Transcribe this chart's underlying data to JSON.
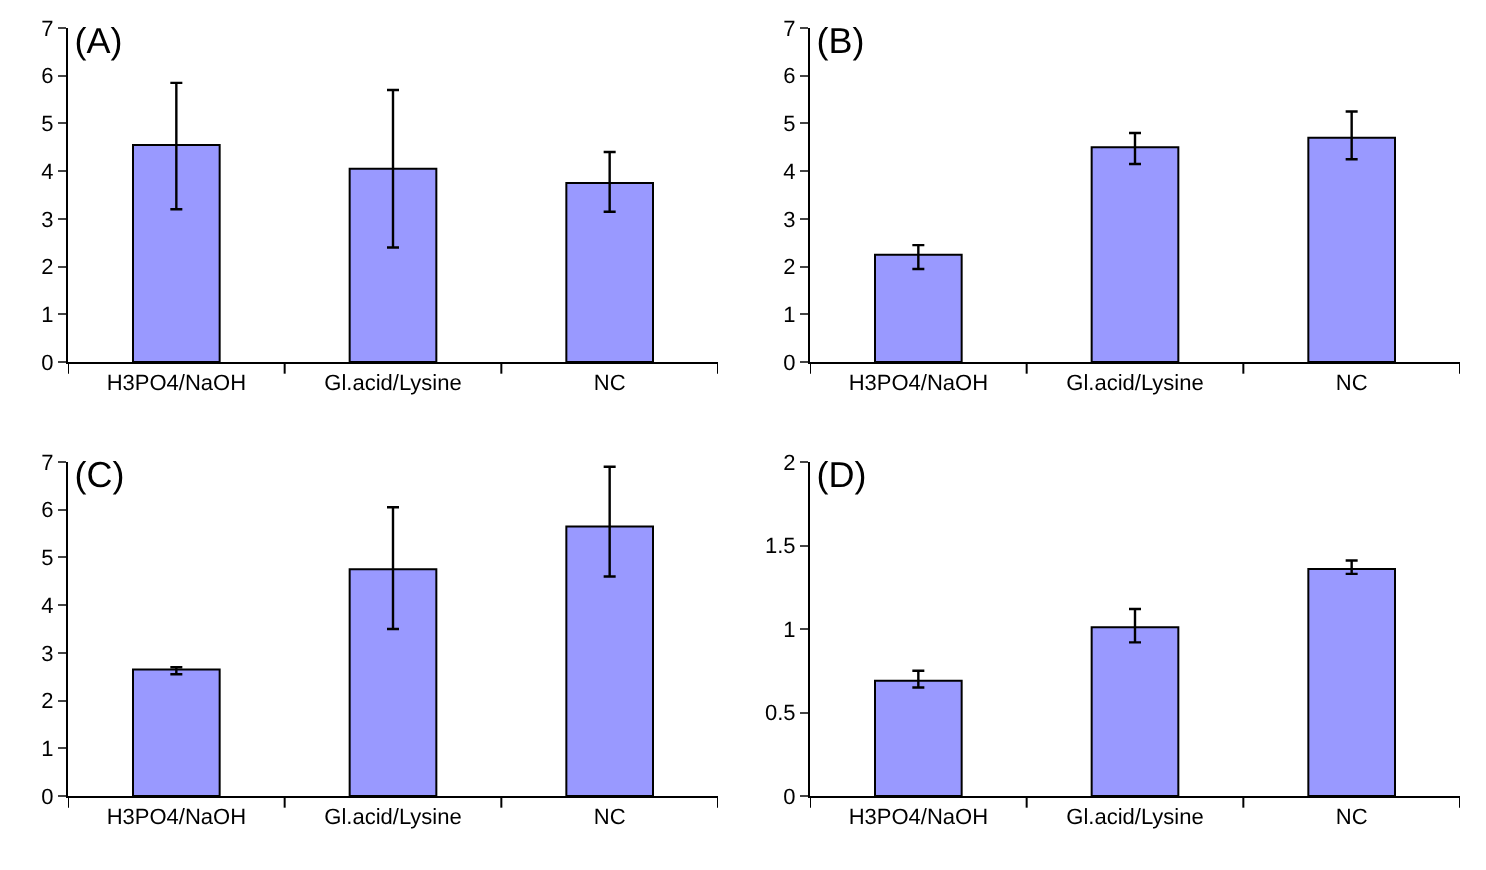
{
  "chart_data": [
    {
      "type": "bar",
      "title": "(A)",
      "categories": [
        "H3PO4/NaOH",
        "Gl.acid/Lysine",
        "NC"
      ],
      "values": [
        4.55,
        4.05,
        3.75
      ],
      "color": "#9999ff",
      "errors": [
        [
          3.2,
          5.85
        ],
        [
          2.4,
          5.7
        ],
        [
          3.15,
          4.4
        ]
      ],
      "ylim": [
        0,
        7
      ],
      "yticks": [
        0,
        1,
        2,
        3,
        4,
        5,
        6,
        7
      ],
      "grid": false
    },
    {
      "type": "bar",
      "title": "(B)",
      "categories": [
        "H3PO4/NaOH",
        "Gl.acid/Lysine",
        "NC"
      ],
      "values": [
        2.25,
        4.5,
        4.7
      ],
      "color": "#9999ff",
      "errors": [
        [
          1.95,
          2.45
        ],
        [
          4.15,
          4.8
        ],
        [
          4.25,
          5.25
        ]
      ],
      "ylim": [
        0,
        7
      ],
      "yticks": [
        0,
        1,
        2,
        3,
        4,
        5,
        6,
        7
      ],
      "grid": false
    },
    {
      "type": "bar",
      "title": "(C)",
      "categories": [
        "H3PO4/NaOH",
        "Gl.acid/Lysine",
        "NC"
      ],
      "values": [
        2.65,
        4.75,
        5.65
      ],
      "color": "#9999ff",
      "errors": [
        [
          2.55,
          2.7
        ],
        [
          3.5,
          6.05
        ],
        [
          4.6,
          6.9
        ]
      ],
      "ylim": [
        0,
        7
      ],
      "yticks": [
        0,
        1,
        2,
        3,
        4,
        5,
        6,
        7
      ],
      "grid": false
    },
    {
      "type": "bar",
      "title": "(D)",
      "categories": [
        "H3PO4/NaOH",
        "Gl.acid/Lysine",
        "NC"
      ],
      "values": [
        0.69,
        1.01,
        1.36
      ],
      "color": "#9999ff",
      "errors": [
        [
          0.65,
          0.75
        ],
        [
          0.92,
          1.12
        ],
        [
          1.33,
          1.41
        ]
      ],
      "ylim": [
        0,
        2
      ],
      "yticks": [
        0,
        0.5,
        1,
        1.5,
        2
      ],
      "grid": false
    }
  ]
}
